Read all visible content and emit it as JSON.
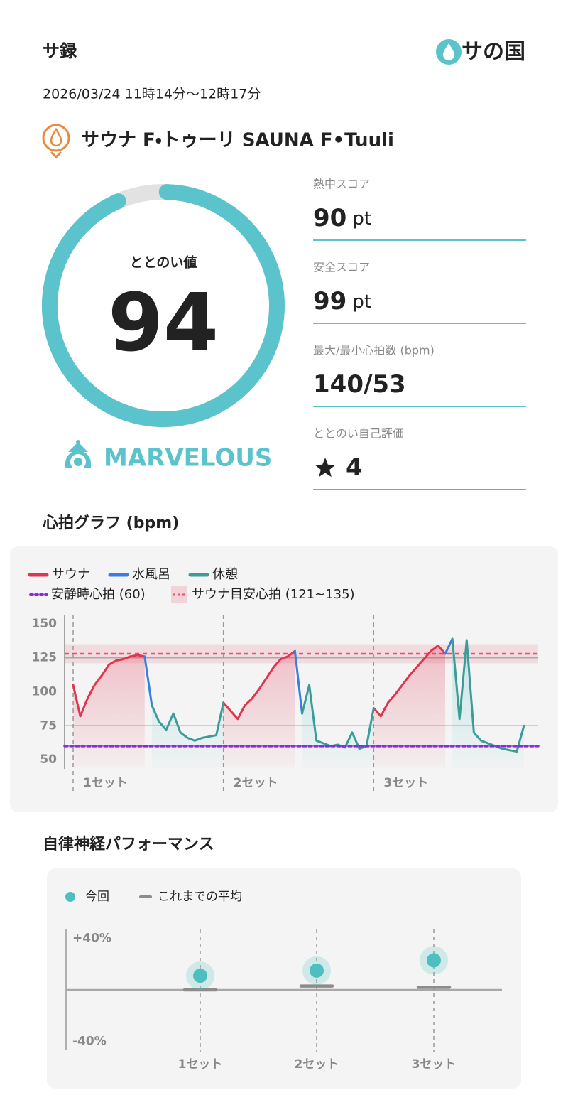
{
  "header": {
    "title": "サ録",
    "logo": "サの国",
    "datetime": "2026/03/24 11時14分〜12時17分"
  },
  "facility": "サウナ F・トゥーリ SAUNA F•Tuuli",
  "totonoi": {
    "label": "ととのい値",
    "value": 94,
    "lim": [
      0,
      100
    ],
    "rating": "MARVELOUS"
  },
  "scores": [
    {
      "label": "熱中スコア",
      "value": 90,
      "unit": "pt"
    },
    {
      "label": "安全スコア",
      "value": 99,
      "unit": "pt"
    },
    {
      "label": "最大/最小心拍数 (bpm)",
      "value": "140/53"
    },
    {
      "label": "ととのい自己評価",
      "value": 4
    }
  ],
  "chart_data": [
    {
      "type": "line",
      "title": "心拍グラフ (bpm)",
      "x": [
        0,
        1,
        2,
        3,
        4,
        5,
        6,
        7,
        8,
        9,
        10,
        11,
        12,
        13,
        14,
        15,
        16,
        17,
        18,
        19,
        20,
        21,
        22,
        23,
        24,
        25,
        26,
        27,
        28,
        29,
        30,
        31,
        32,
        33,
        34,
        35,
        36,
        37,
        38,
        39,
        40,
        41,
        42,
        43,
        44,
        45,
        46,
        47,
        48,
        49,
        50,
        51,
        52,
        53,
        54,
        55,
        56,
        57,
        58,
        59,
        60,
        61,
        62,
        63
      ],
      "xlim": [
        0,
        64
      ],
      "ylim": [
        44,
        157
      ],
      "yticks": [
        50,
        75,
        100,
        125,
        150
      ],
      "gridlines": [
        75,
        125
      ],
      "series": [
        {
          "name": "サウナ",
          "color": "#e2344f",
          "values": [
            105,
            82,
            95,
            105,
            112,
            120,
            123,
            124,
            126,
            127,
            126,
            null,
            null,
            null,
            null,
            null,
            null,
            null,
            null,
            null,
            null,
            92,
            86,
            80,
            90,
            95,
            102,
            110,
            118,
            124,
            126,
            130,
            null,
            null,
            null,
            null,
            null,
            null,
            null,
            null,
            null,
            null,
            88,
            82,
            92,
            98,
            105,
            112,
            118,
            124,
            130,
            134,
            128,
            null,
            null,
            null,
            null,
            null,
            null,
            null,
            null,
            null,
            null,
            null
          ]
        },
        {
          "name": "水風呂",
          "color": "#3a7fe0",
          "values": [
            null,
            null,
            null,
            null,
            null,
            null,
            null,
            null,
            null,
            null,
            126,
            90,
            null,
            null,
            null,
            null,
            null,
            null,
            null,
            null,
            null,
            null,
            null,
            null,
            null,
            null,
            null,
            null,
            null,
            null,
            null,
            130,
            84,
            null,
            null,
            null,
            null,
            null,
            null,
            null,
            null,
            null,
            null,
            null,
            null,
            null,
            null,
            null,
            null,
            null,
            null,
            null,
            128,
            139,
            null,
            null,
            null,
            null,
            null,
            null,
            null,
            null,
            null,
            null
          ]
        },
        {
          "name": "休憩",
          "color": "#3c9c98",
          "values": [
            null,
            null,
            null,
            null,
            null,
            null,
            null,
            null,
            null,
            null,
            null,
            90,
            78,
            72,
            84,
            70,
            66,
            64,
            66,
            67,
            68,
            92,
            null,
            null,
            null,
            null,
            null,
            null,
            null,
            null,
            null,
            null,
            84,
            105,
            64,
            62,
            60,
            61,
            59,
            70,
            58,
            60,
            88,
            null,
            null,
            null,
            null,
            null,
            null,
            null,
            null,
            null,
            null,
            139,
            80,
            138,
            70,
            64,
            62,
            60,
            58,
            57,
            56,
            75
          ]
        }
      ],
      "resting": {
        "label": "安静時心拍 (60)",
        "value": 60,
        "color": "#8a2be2"
      },
      "target": {
        "label": "サウナ目安心拍 (121~135)",
        "range": [
          121,
          135
        ],
        "color": "#e8506a"
      },
      "sets": [
        {
          "label": "1セット",
          "x": 0
        },
        {
          "label": "2セット",
          "x": 21
        },
        {
          "label": "3セット",
          "x": 42
        }
      ]
    },
    {
      "type": "dot",
      "title": "自律神経パフォーマンス",
      "categories": [
        "1セット",
        "2セット",
        "3セット"
      ],
      "ylim": [
        -47,
        47
      ],
      "yticks": [
        {
          "value": 40,
          "label": "+40%"
        },
        {
          "value": -40,
          "label": "-40%"
        }
      ],
      "series": [
        {
          "name": "今回",
          "color": "#4dbfc0",
          "values": [
            11,
            15,
            23
          ]
        },
        {
          "name": "これまでの平均",
          "color": "#8c8c8c",
          "values": [
            0,
            3,
            2
          ]
        }
      ]
    }
  ]
}
